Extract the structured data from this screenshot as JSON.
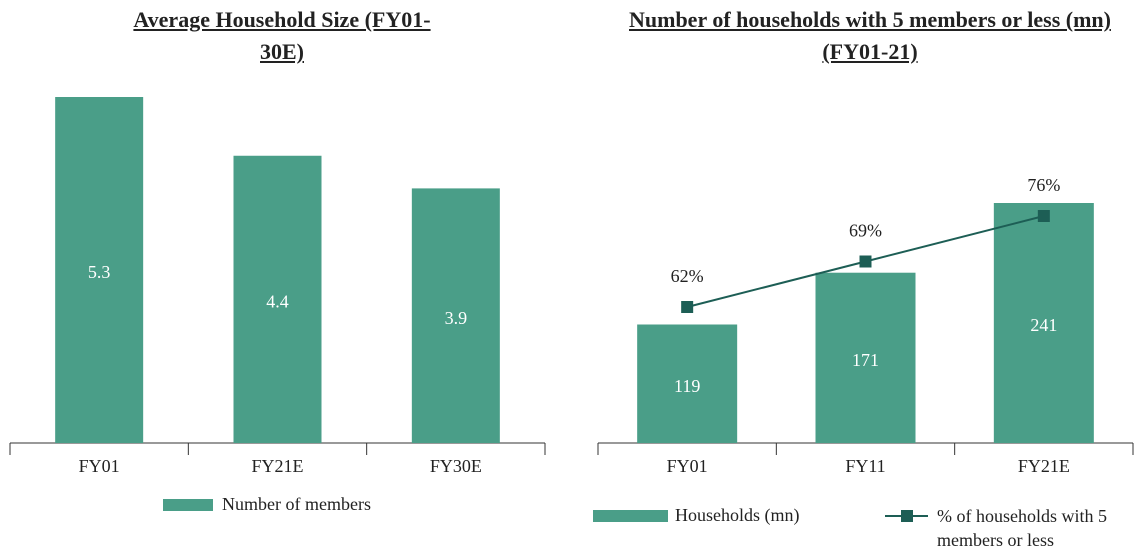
{
  "chart_data": [
    {
      "type": "bar",
      "title": "Average Household Size (FY01-30E)",
      "categories": [
        "FY01",
        "FY21E",
        "FY30E"
      ],
      "series": [
        {
          "name": "Number of members",
          "color": "#4a9e88",
          "values": [
            5.3,
            4.4,
            3.9
          ]
        }
      ]
    },
    {
      "type": "combo",
      "title": "Number of households with 5 members or less (mn) (FY01-21)",
      "categories": [
        "FY01",
        "FY11",
        "FY21E"
      ],
      "series": [
        {
          "name": "Households (mn)",
          "type": "bar",
          "color": "#4a9e88",
          "values": [
            119,
            171,
            241
          ]
        },
        {
          "name": "% of households with 5 members or less",
          "type": "line",
          "color": "#1d5e55",
          "values": [
            62,
            69,
            76
          ],
          "value_labels": [
            "62%",
            "69%",
            "76%"
          ]
        }
      ]
    }
  ]
}
